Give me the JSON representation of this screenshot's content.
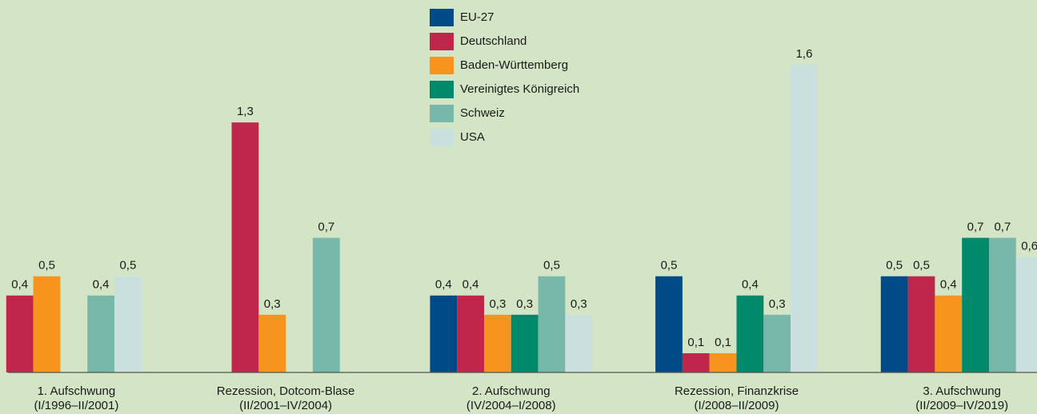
{
  "chart_data": {
    "type": "bar",
    "categories": [
      [
        "1. Aufschwung",
        "(I/1996–II/2001)"
      ],
      [
        "Rezession, Dotcom-Blase",
        "(II/2001–IV/2004)"
      ],
      [
        "2. Aufschwung",
        "(IV/2004–I/2008)"
      ],
      [
        "Rezession, Finanzkrise",
        "(I/2008–II/2009)"
      ],
      [
        "3. Aufschwung",
        "(II/2009–IV/2019)"
      ]
    ],
    "series": [
      {
        "name": "EU-27",
        "color": "#004b87",
        "values": [
          null,
          null,
          0.4,
          0.5,
          0.5
        ],
        "value_labels": [
          null,
          null,
          "0,4",
          "0,5",
          "0,5"
        ]
      },
      {
        "name": "Deutschland",
        "color": "#c0264a",
        "values": [
          0.4,
          1.3,
          0.4,
          0.1,
          0.5
        ],
        "value_labels": [
          "0,4",
          "1,3",
          "0,4",
          "0,1",
          "0,5"
        ]
      },
      {
        "name": "Baden-Württemberg",
        "color": "#f7941d",
        "values": [
          0.5,
          0.3,
          0.3,
          0.1,
          0.4
        ],
        "value_labels": [
          "0,5",
          "0,3",
          "0,3",
          "0,1",
          "0,4"
        ]
      },
      {
        "name": "Vereinigtes Königreich",
        "color": "#00896b",
        "values": [
          null,
          null,
          0.3,
          0.4,
          0.7
        ],
        "value_labels": [
          null,
          null,
          "0,3",
          "0,4",
          "0,7"
        ]
      },
      {
        "name": "Schweiz",
        "color": "#78b8aa",
        "values": [
          0.4,
          0.7,
          0.5,
          0.3,
          0.7
        ],
        "value_labels": [
          "0,4",
          "0,7",
          "0,5",
          "0,3",
          "0,7"
        ]
      },
      {
        "name": "USA",
        "color": "#c9e0df",
        "values": [
          0.5,
          null,
          0.3,
          1.6,
          0.6
        ],
        "value_labels": [
          "0,5",
          null,
          "0,3",
          "1,6",
          "0,6"
        ]
      }
    ],
    "ylim": [
      0,
      1.6
    ],
    "legend": "top"
  }
}
